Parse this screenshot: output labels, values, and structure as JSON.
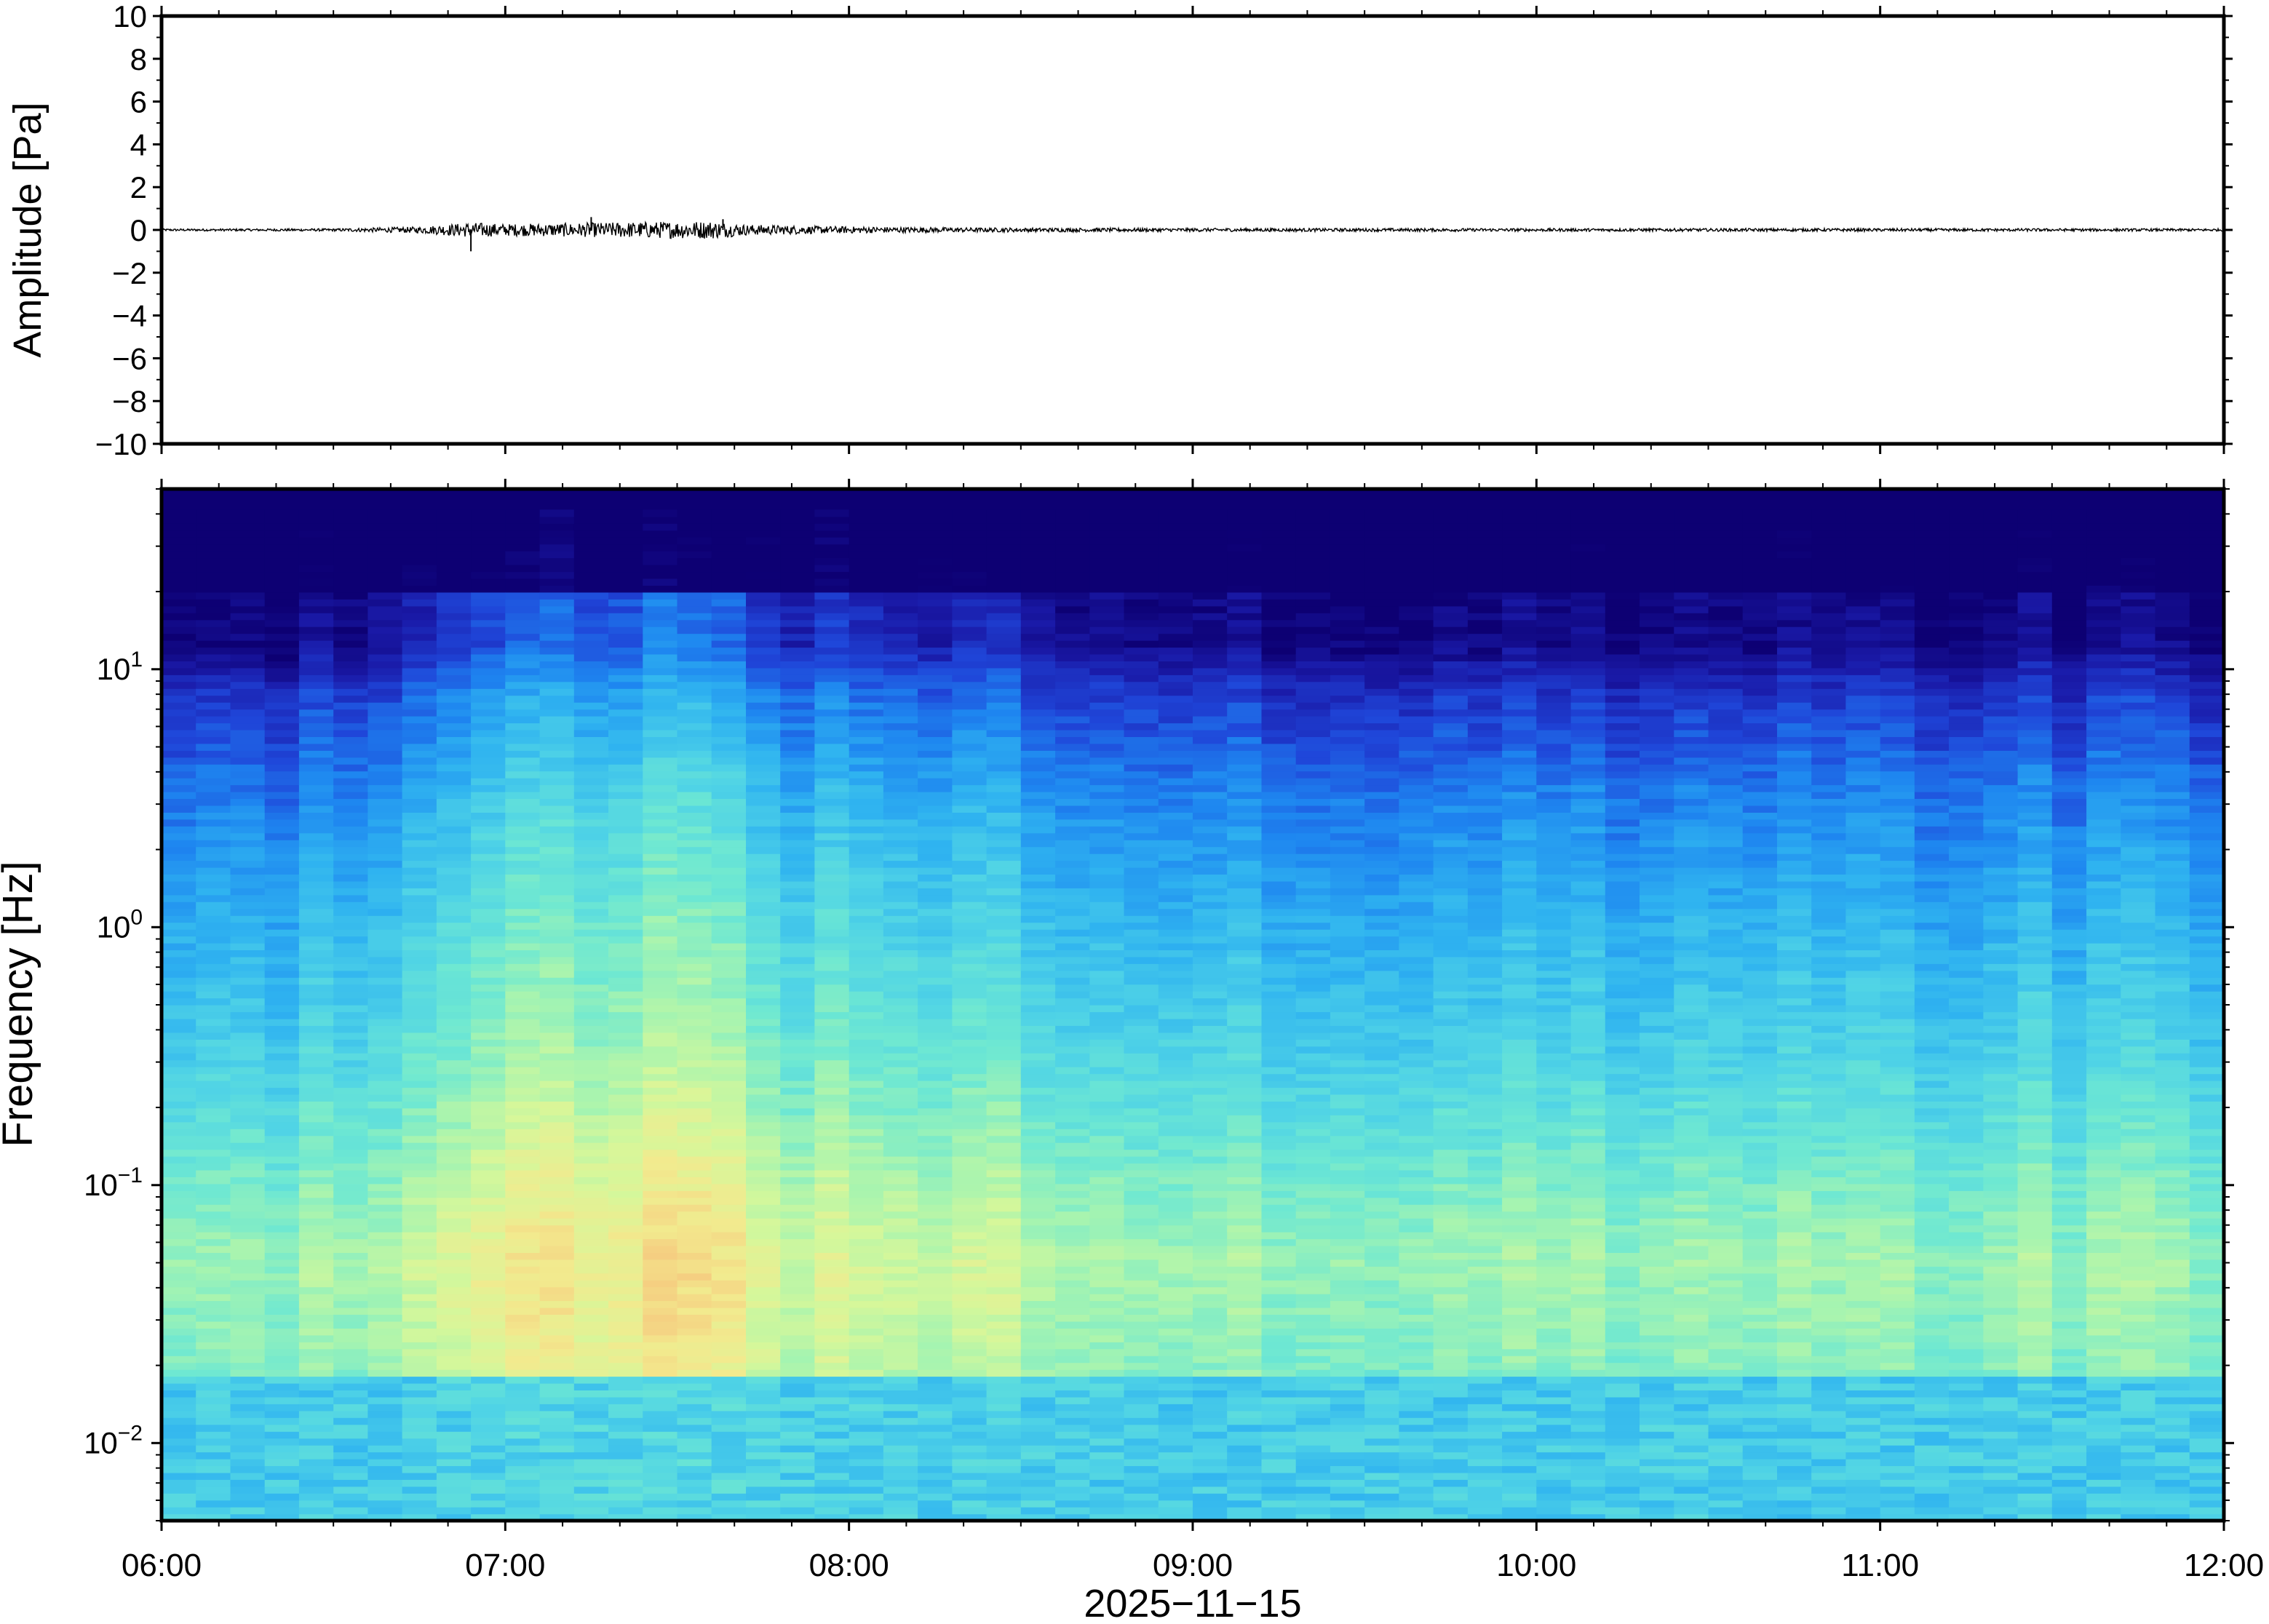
{
  "chart_data": [
    {
      "type": "line",
      "ylabel": "Amplitude [Pa]",
      "ylim": [
        -10,
        10
      ],
      "yticks": [
        10,
        8,
        6,
        4,
        2,
        0,
        -2,
        -4,
        -6,
        -8,
        -10
      ],
      "ytick_labels": [
        "10",
        "8",
        "6",
        "4",
        "2",
        "0",
        "−2",
        "−4",
        "−6",
        "−8",
        "−10"
      ],
      "xlim": [
        "06:00",
        "12:00"
      ],
      "grid": false,
      "series": [
        {
          "color": "#000000",
          "envelope_hours": [
            6.0,
            6.5,
            6.75,
            6.9,
            7.0,
            7.2,
            7.4,
            7.6,
            7.7,
            7.9,
            8.1,
            8.4,
            9.0,
            10.0,
            11.0,
            12.0
          ],
          "envelope_pa": [
            0.05,
            0.06,
            0.15,
            0.35,
            0.28,
            0.32,
            0.38,
            0.42,
            0.25,
            0.18,
            0.14,
            0.1,
            0.08,
            0.07,
            0.07,
            0.06
          ],
          "spikes": [
            {
              "time": "06:54",
              "value": -1.0
            },
            {
              "time": "07:15",
              "value": 0.6
            },
            {
              "time": "07:38",
              "value": 0.5
            }
          ]
        }
      ]
    },
    {
      "type": "heatmap",
      "ylabel": "Frequency [Hz]",
      "yscale": "log",
      "ylim": [
        0.005,
        50
      ],
      "yticks": [
        0.01,
        0.1,
        1,
        10
      ],
      "ytick_labels": [
        {
          "base": "10",
          "exp": "−2"
        },
        {
          "base": "10",
          "exp": "−1"
        },
        {
          "base": "10",
          "exp": "0"
        },
        {
          "base": "10",
          "exp": "1"
        }
      ],
      "xlabel": "2025−11−15",
      "xticks": [
        "06:00",
        "07:00",
        "08:00",
        "09:00",
        "10:00",
        "11:00",
        "12:00"
      ],
      "xlim": [
        "06:00",
        "12:00"
      ],
      "colormap": [
        "#0d0073",
        "#1a1aa8",
        "#1f46d9",
        "#1e86f0",
        "#2fb3f0",
        "#4fd3e6",
        "#6ee8d2",
        "#a6f4b0",
        "#d6f79a",
        "#f2ea8e",
        "#f6c47c",
        "#f49a5c"
      ],
      "time_bins_hours": [
        6.0,
        6.1,
        6.2,
        6.3,
        6.4,
        6.5,
        6.6,
        6.7,
        6.8,
        6.9,
        7.0,
        7.1,
        7.2,
        7.3,
        7.4,
        7.5,
        7.6,
        7.7,
        7.8,
        7.9,
        8.0,
        8.1,
        8.2,
        8.3,
        8.4,
        8.5,
        8.6,
        8.7,
        8.8,
        8.9,
        9.0,
        9.1,
        9.2,
        9.3,
        9.4,
        9.5,
        9.6,
        9.7,
        9.8,
        9.9,
        10.0,
        10.1,
        10.2,
        10.3,
        10.4,
        10.5,
        10.6,
        10.7,
        10.8,
        10.9,
        11.0,
        11.1,
        11.2,
        11.3,
        11.4,
        11.5,
        11.6,
        11.7,
        11.8,
        11.9
      ],
      "relative_energy": [
        0.2,
        0.18,
        0.22,
        0.2,
        0.25,
        0.22,
        0.3,
        0.45,
        0.65,
        0.75,
        0.85,
        0.8,
        0.82,
        0.85,
        0.95,
        1.0,
        0.95,
        0.6,
        0.5,
        0.55,
        0.52,
        0.45,
        0.4,
        0.5,
        0.6,
        0.4,
        0.3,
        0.28,
        0.25,
        0.2,
        0.22,
        0.25,
        0.2,
        0.25,
        0.2,
        0.22,
        0.25,
        0.2,
        0.22,
        0.3,
        0.25,
        0.22,
        0.2,
        0.25,
        0.28,
        0.25,
        0.22,
        0.2,
        0.22,
        0.25,
        0.22,
        0.2,
        0.2,
        0.22,
        0.25,
        0.2,
        0.22,
        0.25,
        0.22,
        0.2
      ]
    }
  ]
}
